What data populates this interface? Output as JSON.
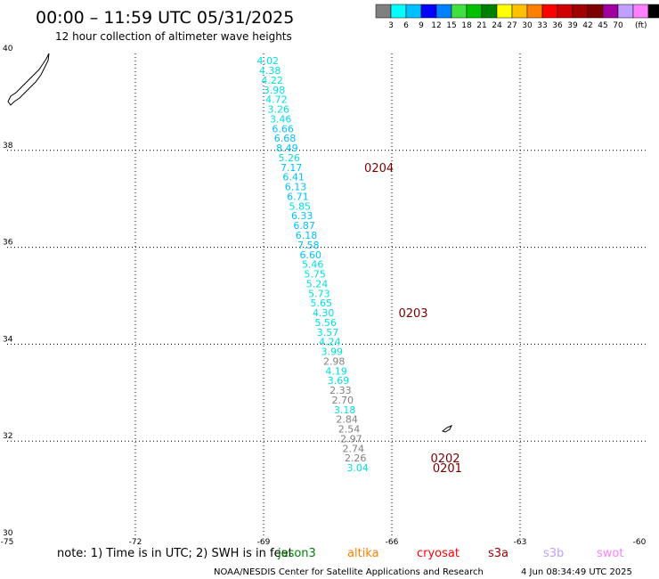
{
  "header": {
    "title": "00:00 – 11:59 UTC 05/31/2025",
    "subtitle": "12 hour collection of altimeter wave heights"
  },
  "colorbar": {
    "colors": [
      "#808080",
      "#00ffff",
      "#00c0ff",
      "#0000ff",
      "#0080ff",
      "#40e040",
      "#00c000",
      "#008000",
      "#ffff00",
      "#ffc000",
      "#ff8000",
      "#ff0000",
      "#d00000",
      "#a00000",
      "#800000",
      "#a000a0",
      "#c0a0ff",
      "#ff80ff",
      "#000000"
    ],
    "labels": [
      "3",
      "6",
      "9",
      "12",
      "15",
      "18",
      "21",
      "24",
      "27",
      "30",
      "33",
      "36",
      "39",
      "42",
      "45",
      "70"
    ],
    "unit": "(ft)"
  },
  "chart_data": {
    "type": "scatter",
    "title": "00:00 – 11:59 UTC 05/31/2025",
    "subtitle": "12 hour collection of altimeter wave heights",
    "xlim": [
      -75,
      -60
    ],
    "ylim": [
      30,
      40
    ],
    "x_ticks": [
      "-75",
      "-72",
      "-69",
      "-66",
      "-63",
      "-60"
    ],
    "y_ticks": [
      "40",
      "38",
      "36",
      "34",
      "32",
      "30"
    ],
    "grid": true,
    "series": [
      {
        "name": "jason3",
        "points": [
          {
            "lon": -68.9,
            "lat": 39.85,
            "v": "4.02",
            "c": "#00e0e0"
          },
          {
            "lon": -68.85,
            "lat": 39.65,
            "v": "4.38",
            "c": "#00e0e0"
          },
          {
            "lon": -68.8,
            "lat": 39.45,
            "v": "4.22",
            "c": "#00e0e0"
          },
          {
            "lon": -68.75,
            "lat": 39.25,
            "v": "3.98",
            "c": "#00e0e0"
          },
          {
            "lon": -68.7,
            "lat": 39.05,
            "v": "4.72",
            "c": "#00e0e0"
          },
          {
            "lon": -68.65,
            "lat": 38.85,
            "v": "3.26",
            "c": "#00e0e0"
          },
          {
            "lon": -68.6,
            "lat": 38.65,
            "v": "3.46",
            "c": "#00e0e0"
          },
          {
            "lon": -68.55,
            "lat": 38.45,
            "v": "6.66",
            "c": "#00c0ff"
          },
          {
            "lon": -68.5,
            "lat": 38.25,
            "v": "6.68",
            "c": "#00c0ff"
          },
          {
            "lon": -68.45,
            "lat": 38.05,
            "v": "8.49",
            "c": "#00c0ff"
          },
          {
            "lon": -68.4,
            "lat": 37.85,
            "v": "5.26",
            "c": "#00e0e0"
          },
          {
            "lon": -68.35,
            "lat": 37.65,
            "v": "7.17",
            "c": "#00c0ff"
          },
          {
            "lon": -68.3,
            "lat": 37.45,
            "v": "6.41",
            "c": "#00c0ff"
          },
          {
            "lon": -68.25,
            "lat": 37.25,
            "v": "6.13",
            "c": "#00c0ff"
          },
          {
            "lon": -68.2,
            "lat": 37.05,
            "v": "6.71",
            "c": "#00c0ff"
          },
          {
            "lon": -68.15,
            "lat": 36.85,
            "v": "5.85",
            "c": "#00e0e0"
          },
          {
            "lon": -68.1,
            "lat": 36.65,
            "v": "6.33",
            "c": "#00c0ff"
          },
          {
            "lon": -68.05,
            "lat": 36.45,
            "v": "6.87",
            "c": "#00c0ff"
          },
          {
            "lon": -68.0,
            "lat": 36.25,
            "v": "6.18",
            "c": "#00c0ff"
          },
          {
            "lon": -67.95,
            "lat": 36.05,
            "v": "7.58",
            "c": "#00c0ff"
          },
          {
            "lon": -67.9,
            "lat": 35.85,
            "v": "6.60",
            "c": "#00c0ff"
          },
          {
            "lon": -67.85,
            "lat": 35.65,
            "v": "5.46",
            "c": "#00e0e0"
          },
          {
            "lon": -67.8,
            "lat": 35.45,
            "v": "5.75",
            "c": "#00e0e0"
          },
          {
            "lon": -67.75,
            "lat": 35.25,
            "v": "5.24",
            "c": "#00e0e0"
          },
          {
            "lon": -67.7,
            "lat": 35.05,
            "v": "5.73",
            "c": "#00e0e0"
          },
          {
            "lon": -67.65,
            "lat": 34.85,
            "v": "5.65",
            "c": "#00e0e0"
          },
          {
            "lon": -67.6,
            "lat": 34.65,
            "v": "4.30",
            "c": "#00e0e0"
          },
          {
            "lon": -67.55,
            "lat": 34.45,
            "v": "5.56",
            "c": "#00e0e0"
          },
          {
            "lon": -67.5,
            "lat": 34.25,
            "v": "3.57",
            "c": "#00e0e0"
          },
          {
            "lon": -67.45,
            "lat": 34.05,
            "v": "4.24",
            "c": "#00e0e0"
          },
          {
            "lon": -67.4,
            "lat": 33.85,
            "v": "3.99",
            "c": "#00e0e0"
          },
          {
            "lon": -67.35,
            "lat": 33.65,
            "v": "2.98",
            "c": "#808080"
          },
          {
            "lon": -67.3,
            "lat": 33.45,
            "v": "4.19",
            "c": "#00e0e0"
          },
          {
            "lon": -67.25,
            "lat": 33.25,
            "v": "3.69",
            "c": "#00e0e0"
          },
          {
            "lon": -67.2,
            "lat": 33.05,
            "v": "2.33",
            "c": "#808080"
          },
          {
            "lon": -67.15,
            "lat": 32.85,
            "v": "2.70",
            "c": "#808080"
          },
          {
            "lon": -67.1,
            "lat": 32.65,
            "v": "3.18",
            "c": "#00e0e0"
          },
          {
            "lon": -67.05,
            "lat": 32.45,
            "v": "2.84",
            "c": "#808080"
          },
          {
            "lon": -67.0,
            "lat": 32.25,
            "v": "2.54",
            "c": "#808080"
          },
          {
            "lon": -66.95,
            "lat": 32.05,
            "v": "2.97",
            "c": "#808080"
          },
          {
            "lon": -66.9,
            "lat": 31.85,
            "v": "2.74",
            "c": "#808080"
          },
          {
            "lon": -66.85,
            "lat": 31.65,
            "v": "2.26",
            "c": "#808080"
          },
          {
            "lon": -66.8,
            "lat": 31.45,
            "v": "3.04",
            "c": "#00e0e0"
          }
        ]
      }
    ],
    "pass_labels": [
      {
        "lon": -66.3,
        "lat": 37.65,
        "text": "0204"
      },
      {
        "lon": -65.5,
        "lat": 34.65,
        "text": "0203"
      },
      {
        "lon": -64.75,
        "lat": 31.65,
        "text": "0202"
      },
      {
        "lon": -64.7,
        "lat": 31.45,
        "text": "0201"
      }
    ]
  },
  "note": "note: 1) Time is in UTC; 2) SWH is in feet",
  "satellites": [
    {
      "name": "jason3",
      "color": "#008000"
    },
    {
      "name": "altika",
      "color": "#ff8000"
    },
    {
      "name": "cryosat",
      "color": "#ff0000"
    },
    {
      "name": "s3a",
      "color": "#a00000"
    },
    {
      "name": "s3b",
      "color": "#c0a0ff"
    },
    {
      "name": "swot",
      "color": "#ff80ff"
    }
  ],
  "footer": {
    "credit": "NOAA/NESDIS Center for Satellite Applications and Research",
    "timestamp": "4 Jun 08:34:49 UTC 2025"
  }
}
